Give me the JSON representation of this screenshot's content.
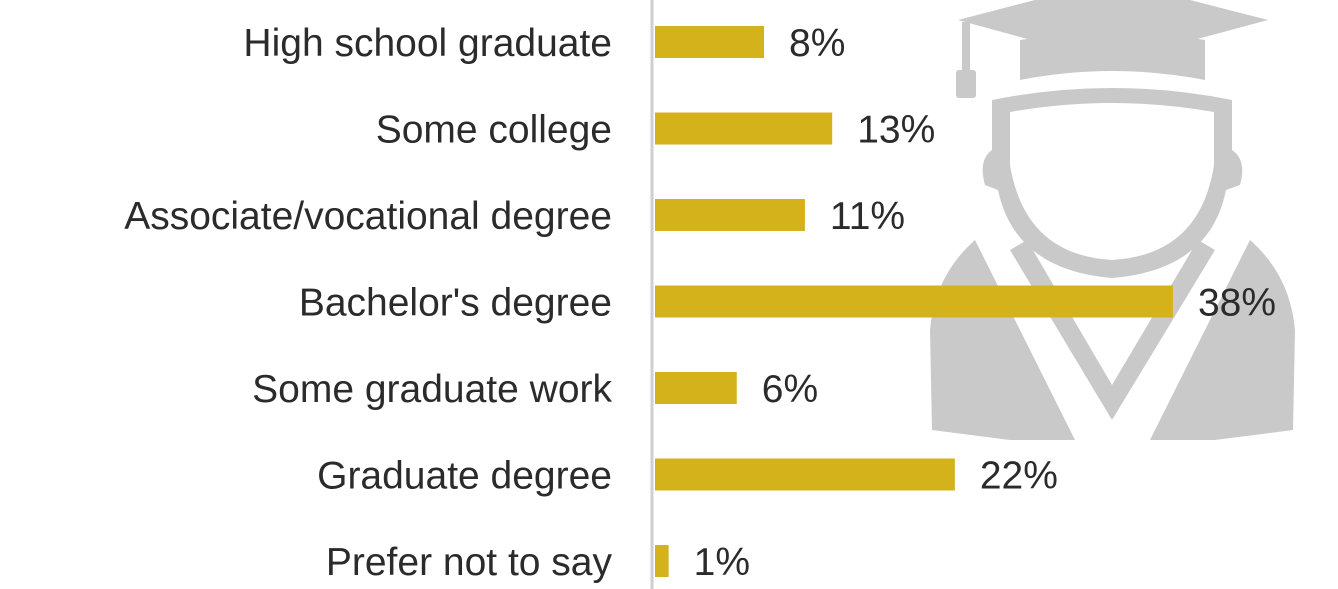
{
  "chart_data": {
    "type": "bar",
    "orientation": "horizontal",
    "categories": [
      "High school graduate",
      "Some college",
      "Associate/vocational degree",
      "Bachelor's degree",
      "Some graduate work",
      "Graduate degree",
      "Prefer not to say"
    ],
    "values": [
      8,
      13,
      11,
      38,
      6,
      22,
      1
    ],
    "value_labels": [
      "8%",
      "13%",
      "11%",
      "38%",
      "6%",
      "22%",
      "1%"
    ],
    "value_unit": "%",
    "title": "",
    "xlabel": "",
    "ylabel": "",
    "xlim": [
      0,
      40
    ],
    "grid": false,
    "legend": "none"
  },
  "colors": {
    "bar": "#d4b21c",
    "axis": "#cfcfcf",
    "text": "#2b2b2b",
    "watermark": "#c9c9c9"
  },
  "icons": {
    "background": "graduate-watermark-icon"
  }
}
